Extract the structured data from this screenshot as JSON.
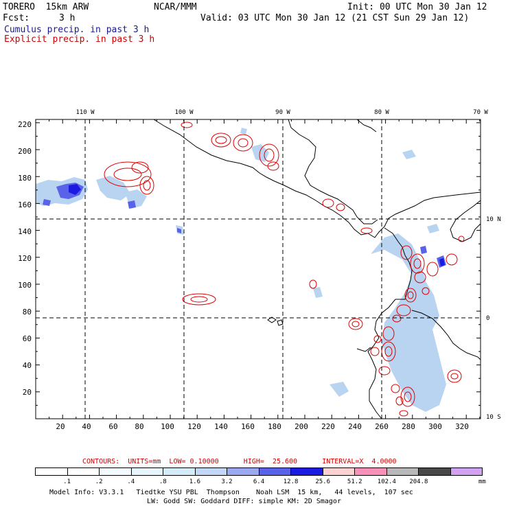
{
  "header": {
    "model": "TORERO  15km ARW",
    "org": "NCAR/MMM",
    "init": "Init: 00 UTC Mon 30 Jan 12",
    "fcst_label": "Fcst:",
    "fcst_value": "3 h",
    "valid": "Valid: 03 UTC Mon 30 Jan 12 (21 CST Sun 29 Jan 12)",
    "cumulus": "Cumulus precip. in past 3 h",
    "explicit": "Explicit precip. in past 3 h"
  },
  "map": {
    "lon_labels": [
      "110 W",
      "100 W",
      "90 W",
      "80 W",
      "70 W"
    ],
    "lat_labels": [
      "10 N",
      "0",
      "10 S"
    ],
    "y_ticks": [
      "220",
      "200",
      "180",
      "160",
      "140",
      "120",
      "100",
      "80",
      "60",
      "40",
      "20"
    ],
    "x_ticks": [
      "20",
      "40",
      "60",
      "80",
      "100",
      "120",
      "140",
      "160",
      "180",
      "200",
      "220",
      "240",
      "260",
      "280",
      "300",
      "320"
    ],
    "colors": {
      "coast": "#000000",
      "contour": "#e00000",
      "cumulus_light": "#b8d4f0",
      "cumulus_dark": "#2030e0"
    }
  },
  "contours": {
    "text": "CONTOURS:  UNITS=mm  LOW= 0.10000      HIGH=  25.600      INTERVAL=X  4.0000"
  },
  "legend": {
    "labels": [
      ".1",
      ".2",
      ".4",
      ".8",
      "1.6",
      "3.2",
      "6.4",
      "12.8",
      "25.6",
      "51.2",
      "102.4",
      "204.8"
    ],
    "unit": "mm",
    "colors": [
      "#ffffff",
      "#ffffff",
      "#f4fbff",
      "#e6f6fb",
      "#d4ecf8",
      "#c2d6f6",
      "#9aa8f0",
      "#5a62ea",
      "#1a1ae0",
      "#ffd2d2",
      "#f890b8",
      "#b8b8b8",
      "#484848",
      "#d2a2f2"
    ]
  },
  "footer": {
    "line1": "Model Info: V3.3.1   Tiedtke YSU PBL  Thompson    Noah LSM  15 km,   44 levels,  107 sec",
    "line2": "LW: Godd SW: Goddard DIFF: simple KM: 2D Smagor"
  }
}
